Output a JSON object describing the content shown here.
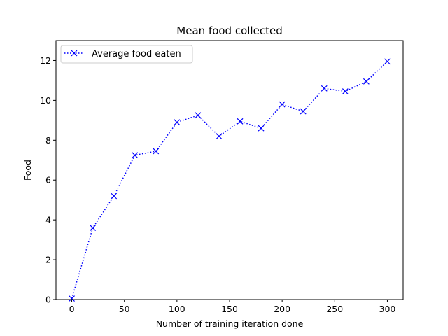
{
  "chart_data": {
    "type": "line",
    "title": "Mean food collected",
    "xlabel": "Number of training iteration done",
    "ylabel": "Food",
    "xlim": [
      -15,
      315
    ],
    "ylim": [
      0,
      13
    ],
    "xticks": [
      0,
      50,
      100,
      150,
      200,
      250,
      300
    ],
    "yticks": [
      0,
      2,
      4,
      6,
      8,
      10,
      12
    ],
    "grid": false,
    "legend_position": "top-left",
    "series": [
      {
        "name": "Average food eaten",
        "color": "#0000ff",
        "line_style": "dotted",
        "marker": "x",
        "x": [
          0,
          20,
          40,
          60,
          80,
          100,
          120,
          140,
          160,
          180,
          200,
          220,
          240,
          260,
          280,
          300
        ],
        "y": [
          0.05,
          3.6,
          5.2,
          7.25,
          7.45,
          8.9,
          9.25,
          8.2,
          8.95,
          8.6,
          9.8,
          9.45,
          10.6,
          10.45,
          10.95,
          11.95
        ]
      }
    ]
  }
}
